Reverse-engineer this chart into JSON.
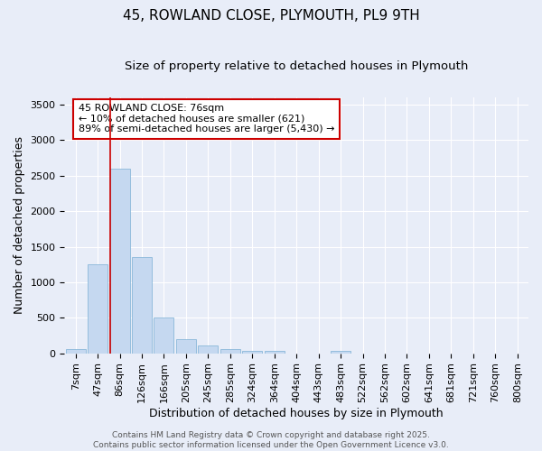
{
  "title_line1": "45, ROWLAND CLOSE, PLYMOUTH, PL9 9TH",
  "title_line2": "Size of property relative to detached houses in Plymouth",
  "xlabel": "Distribution of detached houses by size in Plymouth",
  "ylabel": "Number of detached properties",
  "bar_labels": [
    "7sqm",
    "47sqm",
    "86sqm",
    "126sqm",
    "166sqm",
    "205sqm",
    "245sqm",
    "285sqm",
    "324sqm",
    "364sqm",
    "404sqm",
    "443sqm",
    "483sqm",
    "522sqm",
    "562sqm",
    "602sqm",
    "641sqm",
    "681sqm",
    "721sqm",
    "760sqm",
    "800sqm"
  ],
  "bar_values": [
    55,
    1250,
    2600,
    1360,
    500,
    200,
    110,
    55,
    40,
    30,
    0,
    0,
    30,
    0,
    0,
    0,
    0,
    0,
    0,
    0,
    0
  ],
  "bar_color": "#c5d8f0",
  "bar_edge_color": "#7bafd4",
  "bar_edge_width": 0.5,
  "background_color": "#e8edf8",
  "plot_bg_color": "#e8edf8",
  "grid_color": "#ffffff",
  "red_line_index": 2,
  "annotation_text": "45 ROWLAND CLOSE: 76sqm\n← 10% of detached houses are smaller (621)\n89% of semi-detached houses are larger (5,430) →",
  "annotation_box_color": "#ffffff",
  "annotation_box_edge": "#cc0000",
  "ylim": [
    0,
    3600
  ],
  "yticks": [
    0,
    500,
    1000,
    1500,
    2000,
    2500,
    3000,
    3500
  ],
  "footer_line1": "Contains HM Land Registry data © Crown copyright and database right 2025.",
  "footer_line2": "Contains public sector information licensed under the Open Government Licence v3.0.",
  "title_fontsize": 11,
  "subtitle_fontsize": 9.5,
  "axis_label_fontsize": 9,
  "tick_fontsize": 8,
  "annotation_fontsize": 8,
  "footer_fontsize": 6.5
}
